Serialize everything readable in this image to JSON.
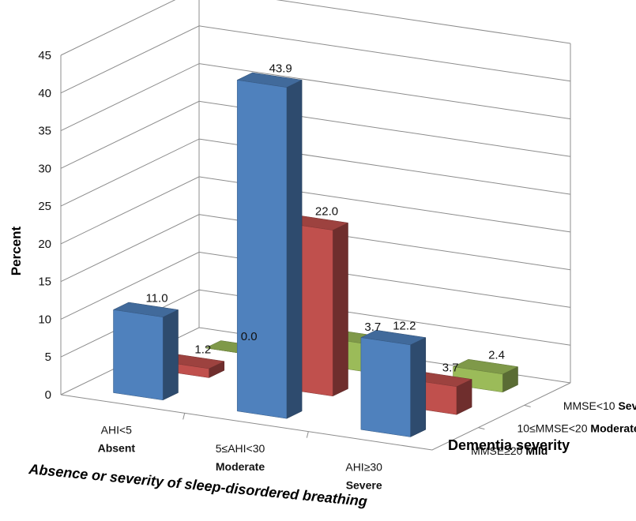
{
  "chart_data": {
    "type": "bar",
    "subtype": "3d-column",
    "ylabel": "Percent",
    "ylim": [
      0,
      45
    ],
    "yticks": [
      0,
      5,
      10,
      15,
      20,
      25,
      30,
      35,
      40,
      45
    ],
    "gridlines": true,
    "xlabel": "Absence or severity of sleep-disordered breathing",
    "categories": [
      {
        "line1": "AHI<5",
        "line2": "Absent"
      },
      {
        "line1": "5≤AHI<30",
        "line2": "Moderate"
      },
      {
        "line1": "AHI≥30",
        "line2": "Severe"
      }
    ],
    "depth_label": "Dementia severity",
    "series": [
      {
        "line1": "MMSE≥20",
        "line2": "Mild",
        "color": "#4F81BD",
        "values": [
          11.0,
          43.9,
          12.2
        ],
        "labels": [
          "11.0",
          "43.9",
          "12.2"
        ]
      },
      {
        "line1": "10≤MMSE<20",
        "line2": "Moderate",
        "color": "#C0504D",
        "values": [
          1.2,
          22.0,
          3.7
        ],
        "labels": [
          "1.2",
          "22.0",
          "3.7"
        ]
      },
      {
        "line1": "MMSE<10",
        "line2": "Severe",
        "color": "#9BBB59",
        "values": [
          0.0,
          3.7,
          2.4
        ],
        "labels": [
          "0.0",
          "3.7",
          "2.4"
        ]
      }
    ]
  }
}
